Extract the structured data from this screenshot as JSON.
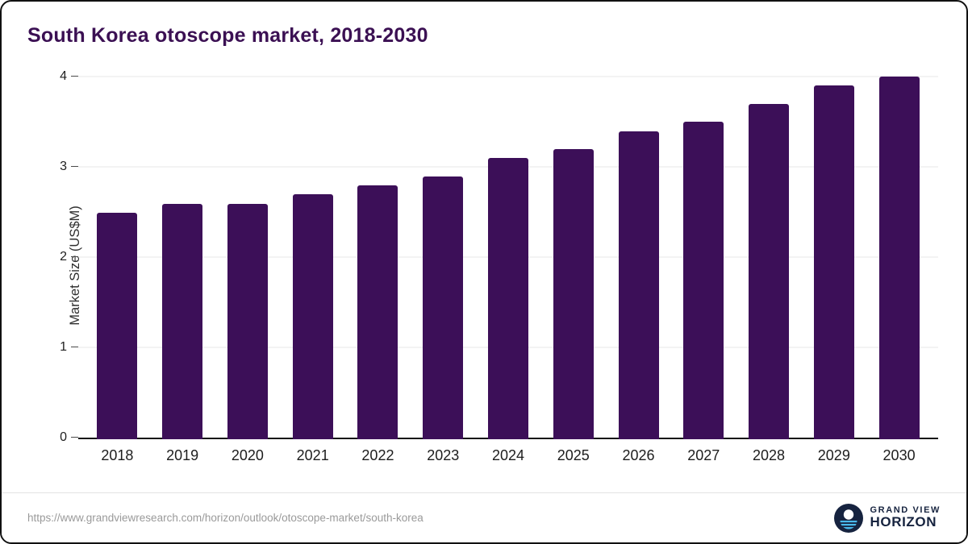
{
  "page": {
    "title": "South Korea otoscope market, 2018-2030",
    "source_url": "https://www.grandviewresearch.com/horizon/outlook/otoscope-market/south-korea",
    "logo": {
      "line1": "GRAND VIEW",
      "line2": "HORIZON"
    }
  },
  "chart_data": {
    "type": "bar",
    "title": "South Korea otoscope market, 2018-2030",
    "categories": [
      "2018",
      "2019",
      "2020",
      "2021",
      "2022",
      "2023",
      "2024",
      "2025",
      "2026",
      "2027",
      "2028",
      "2029",
      "2030"
    ],
    "values": [
      2.5,
      2.6,
      2.6,
      2.7,
      2.8,
      2.9,
      3.1,
      3.2,
      3.4,
      3.5,
      3.7,
      3.9,
      4.0
    ],
    "xlabel": "",
    "ylabel": "Market Size (US$M)",
    "ylim": [
      0,
      4
    ],
    "yticks": [
      0,
      1,
      2,
      3,
      4
    ],
    "grid": true,
    "legend": "none",
    "bar_color": "#3c0f58"
  }
}
